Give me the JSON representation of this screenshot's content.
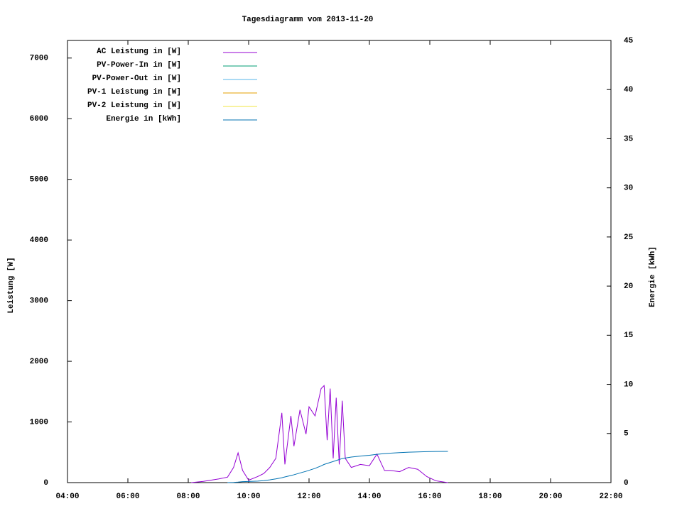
{
  "chart_data": {
    "type": "line",
    "title": "Tagesdiagramm vom 2013-11-20",
    "y_label": "Leistung [W]",
    "y2_label": "Energie [kWh]",
    "x": [
      8.1,
      8.5,
      9.0,
      9.3,
      9.5,
      9.65,
      9.8,
      10.0,
      10.3,
      10.5,
      10.7,
      10.9,
      11.1,
      11.2,
      11.4,
      11.5,
      11.7,
      11.9,
      12.0,
      12.2,
      12.4,
      12.5,
      12.6,
      12.7,
      12.8,
      12.9,
      13.0,
      13.1,
      13.2,
      13.4,
      13.7,
      14.0,
      14.25,
      14.5,
      14.7,
      15.0,
      15.3,
      15.6,
      15.9,
      16.2,
      16.6
    ],
    "series": [
      {
        "name": "AC Leistung in [W]",
        "color": "#9400d3",
        "values": [
          0,
          20,
          60,
          90,
          250,
          490,
          200,
          40,
          100,
          150,
          250,
          400,
          1150,
          300,
          1100,
          600,
          1200,
          800,
          1250,
          1100,
          1550,
          1600,
          700,
          1550,
          400,
          1400,
          300,
          1350,
          400,
          250,
          300,
          280,
          470,
          200,
          200,
          180,
          250,
          220,
          100,
          30,
          0
        ]
      },
      {
        "name": "PV-Power-In in [W]",
        "color": "#009e73",
        "values": [
          null,
          null,
          null,
          null,
          null,
          null,
          null,
          null,
          null,
          null,
          null,
          null,
          null,
          null,
          null,
          null,
          null,
          null,
          null,
          null,
          null,
          null,
          null,
          null,
          null,
          null,
          null,
          null,
          null,
          null,
          null,
          null,
          null,
          null,
          null,
          null,
          null,
          null,
          null,
          null,
          null
        ]
      },
      {
        "name": "PV-Power-Out in [W]",
        "color": "#56b4e9",
        "values": [
          null,
          null,
          null,
          null,
          null,
          null,
          null,
          null,
          null,
          null,
          null,
          null,
          null,
          null,
          null,
          null,
          null,
          null,
          null,
          null,
          null,
          null,
          null,
          null,
          null,
          null,
          null,
          null,
          null,
          null,
          null,
          null,
          null,
          null,
          null,
          null,
          null,
          null,
          null,
          null,
          null
        ]
      },
      {
        "name": "PV-1 Leistung in [W]",
        "color": "#e69f00",
        "values": [
          null,
          null,
          null,
          null,
          null,
          null,
          null,
          null,
          null,
          null,
          null,
          null,
          null,
          null,
          null,
          null,
          null,
          null,
          null,
          null,
          null,
          null,
          null,
          null,
          null,
          null,
          null,
          null,
          null,
          null,
          null,
          null,
          null,
          null,
          null,
          null,
          null,
          null,
          null,
          null,
          null
        ]
      },
      {
        "name": "PV-2 Leistung in [W]",
        "color": "#f0e442",
        "values": [
          null,
          null,
          null,
          null,
          null,
          null,
          null,
          null,
          null,
          null,
          null,
          null,
          null,
          null,
          null,
          null,
          null,
          null,
          null,
          null,
          null,
          null,
          null,
          null,
          null,
          null,
          null,
          null,
          null,
          null,
          null,
          null,
          null,
          null,
          null,
          null,
          null,
          null,
          null,
          null,
          null
        ]
      },
      {
        "name": "Energie in [kWh]",
        "color": "#0072b2",
        "axis": "y2",
        "values": [
          null,
          null,
          null,
          0,
          0.02,
          0.05,
          0.1,
          0.12,
          0.15,
          0.2,
          0.28,
          0.38,
          0.5,
          0.58,
          0.72,
          0.8,
          0.98,
          1.15,
          1.25,
          1.45,
          1.7,
          1.85,
          1.95,
          2.05,
          2.15,
          2.25,
          2.35,
          2.45,
          2.5,
          2.6,
          2.7,
          2.78,
          2.88,
          2.95,
          3.0,
          3.05,
          3.1,
          3.12,
          3.15,
          3.17,
          3.18
        ]
      }
    ],
    "xlim": [
      4,
      22
    ],
    "xticks": [
      {
        "value": 4,
        "label": "04:00"
      },
      {
        "value": 6,
        "label": "06:00"
      },
      {
        "value": 8,
        "label": "08:00"
      },
      {
        "value": 10,
        "label": "10:00"
      },
      {
        "value": 12,
        "label": "12:00"
      },
      {
        "value": 14,
        "label": "14:00"
      },
      {
        "value": 16,
        "label": "16:00"
      },
      {
        "value": 18,
        "label": "18:00"
      },
      {
        "value": 20,
        "label": "20:00"
      },
      {
        "value": 22,
        "label": "22:00"
      }
    ],
    "ylim": [
      0,
      7290
    ],
    "yticks": [
      0,
      1000,
      2000,
      3000,
      4000,
      5000,
      6000,
      7000
    ],
    "y2lim": [
      0,
      45
    ],
    "y2ticks": [
      0,
      5,
      10,
      15,
      20,
      25,
      30,
      35,
      40,
      45
    ],
    "legend": "upper left"
  }
}
